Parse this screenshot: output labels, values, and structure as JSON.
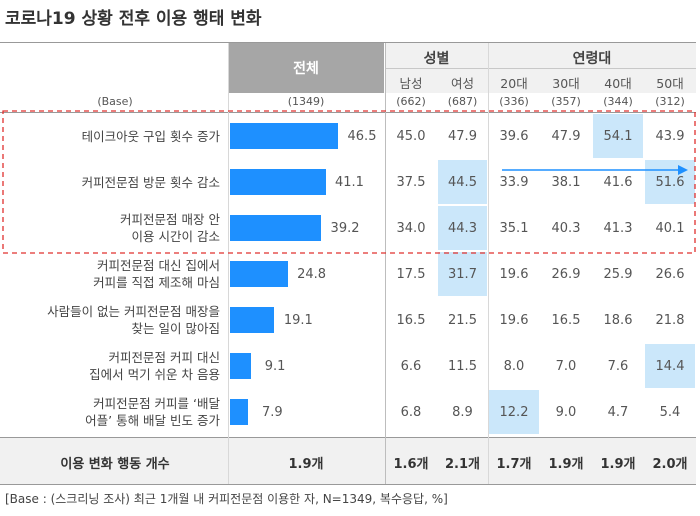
{
  "title": "코로나19 상황 전후 이용 행태 변화",
  "header": {
    "total": "전체",
    "gender_group": "성별",
    "age_group": "연령대",
    "columns": [
      "남성",
      "여성",
      "20대",
      "30대",
      "40대",
      "50대"
    ],
    "base_label": "(Base)",
    "base_total": "(1349)",
    "base_values": [
      "(662)",
      "(687)",
      "(336)",
      "(357)",
      "(344)",
      "(312)"
    ]
  },
  "footer": {
    "label": "이용 변화 행동 개수",
    "total": "1.9개",
    "values": [
      "1.6개",
      "2.1개",
      "1.7개",
      "1.9개",
      "1.9개",
      "2.0개"
    ]
  },
  "note": "[Base : (스크리닝 조사) 최근 1개월 내 커피전문점 이용한 자, N=1349, 복수응답, %]",
  "colors": {
    "bar": "#1e90ff",
    "highlight": "#cbe7fa",
    "header_total": "#a6a6a6",
    "dashed_box": "#e0312e",
    "arrow": "#1e90ff"
  },
  "chart_data": {
    "type": "table",
    "title": "코로나19 상황 전후 이용 행태 변화",
    "columns": [
      "전체",
      "남성",
      "여성",
      "20대",
      "30대",
      "40대",
      "50대"
    ],
    "rows": [
      {
        "label_lines": [
          "테이크아웃 구입 횟수 증가"
        ],
        "total": 46.5,
        "total_text": "46.5",
        "values": [
          "45.0",
          "47.9",
          "39.6",
          "47.9",
          "54.1",
          "43.9"
        ],
        "highlight": [
          false,
          false,
          false,
          false,
          true,
          false
        ]
      },
      {
        "label_lines": [
          "커피전문점 방문 횟수 감소"
        ],
        "total": 41.1,
        "total_text": "41.1",
        "values": [
          "37.5",
          "44.5",
          "33.9",
          "38.1",
          "41.6",
          "51.6"
        ],
        "highlight": [
          false,
          true,
          false,
          false,
          false,
          true
        ]
      },
      {
        "label_lines": [
          "커피전문점 매장 안",
          "이용 시간이 감소"
        ],
        "total": 39.2,
        "total_text": "39.2",
        "values": [
          "34.0",
          "44.3",
          "35.1",
          "40.3",
          "41.3",
          "40.1"
        ],
        "highlight": [
          false,
          true,
          false,
          false,
          false,
          false
        ]
      },
      {
        "label_lines": [
          "커피전문점 대신 집에서",
          "커피를 직접 제조해 마심"
        ],
        "total": 24.8,
        "total_text": "24.8",
        "values": [
          "17.5",
          "31.7",
          "19.6",
          "26.9",
          "25.9",
          "26.6"
        ],
        "highlight": [
          false,
          true,
          false,
          false,
          false,
          false
        ]
      },
      {
        "label_lines": [
          "사람들이 없는 커피전문점 매장을",
          "찾는 일이 많아짐"
        ],
        "total": 19.1,
        "total_text": "19.1",
        "values": [
          "16.5",
          "21.5",
          "19.6",
          "16.5",
          "18.6",
          "21.8"
        ],
        "highlight": [
          false,
          false,
          false,
          false,
          false,
          false
        ]
      },
      {
        "label_lines": [
          "커피전문점 커피 대신",
          "집에서 먹기 쉬운 차 음용"
        ],
        "total": 9.1,
        "total_text": "9.1",
        "values": [
          "6.6",
          "11.5",
          "8.0",
          "7.0",
          "7.6",
          "14.4"
        ],
        "highlight": [
          false,
          false,
          false,
          false,
          false,
          true
        ]
      },
      {
        "label_lines": [
          "커피전문점 커피를 ‘배달",
          "어플’ 통해 배달 빈도 증가"
        ],
        "total": 7.9,
        "total_text": "7.9",
        "values": [
          "6.8",
          "8.9",
          "12.2",
          "9.0",
          "4.7",
          "5.4"
        ],
        "highlight": [
          false,
          false,
          true,
          false,
          false,
          false
        ]
      }
    ],
    "bar_max": 46.5,
    "arrow": {
      "row": 1,
      "from_column": "20대",
      "to_column": "50대"
    },
    "dashed_box_rows": [
      0,
      1,
      2
    ]
  }
}
